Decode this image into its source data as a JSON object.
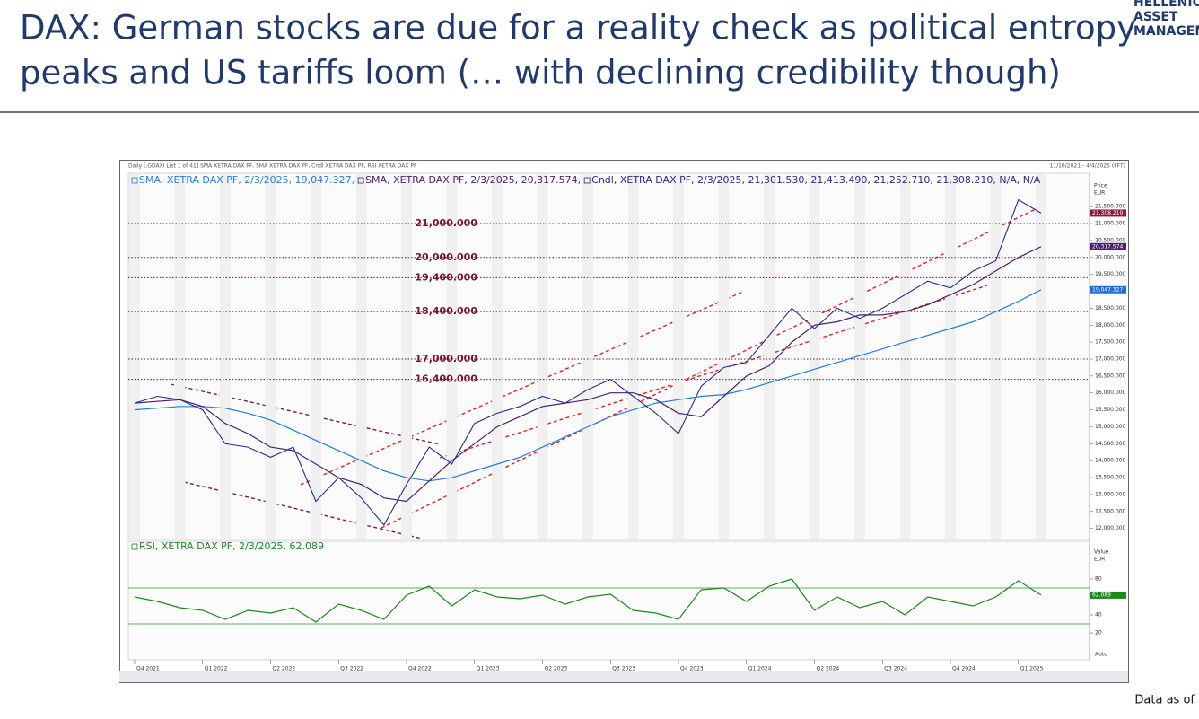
{
  "header": {
    "title": [
      "DAX: German stocks are due for a reality check as political entropy",
      "peaks and US tariffs loom (… with declining credibility though)"
    ],
    "logo": [
      "HELLENIC",
      "ASSET",
      "MANAGEMENT"
    ]
  },
  "footer": {
    "note": "Data as of"
  },
  "chart_data": [
    {
      "type": "line",
      "caption": "Daily [.GDAXI List 1 of 41] SMA XETRA DAX PF, SMA XETRA DAX PF, Cndl XETRA DAX PF, RSI XETRA DAX PF",
      "date_range": "11/10/2021 - 4/4/2025 (FFT)",
      "axis_title": [
        "Price",
        "EUR"
      ],
      "categories": [
        "Q4 2021",
        null,
        null,
        "Q1 2022",
        null,
        null,
        "Q2 2022",
        null,
        null,
        "Q3 2022",
        null,
        null,
        "Q4 2022",
        null,
        null,
        "Q1 2023",
        null,
        null,
        "Q2 2023",
        null,
        null,
        "Q3 2023",
        null,
        null,
        "Q4 2023",
        null,
        null,
        "Q1 2024",
        null,
        null,
        "Q2 2024",
        null,
        null,
        "Q3 2024",
        null,
        null,
        "Q4 2024",
        null,
        null,
        "Q1 2025",
        null
      ],
      "ylim": [
        11700,
        22300
      ],
      "yticks": [
        {
          "value": 12000,
          "label": "12,000.000"
        },
        {
          "value": 12500,
          "label": "12,500.000"
        },
        {
          "value": 13000,
          "label": "13,000.000"
        },
        {
          "value": 13500,
          "label": "13,500.000"
        },
        {
          "value": 14000,
          "label": "14,000.000"
        },
        {
          "value": 14500,
          "label": "14,500.000"
        },
        {
          "value": 15000,
          "label": "15,000.000"
        },
        {
          "value": 15500,
          "label": "15,500.000"
        },
        {
          "value": 16000,
          "label": "16,000.000"
        },
        {
          "value": 16500,
          "label": "16,500.000"
        },
        {
          "value": 17000,
          "label": "17,000.000"
        },
        {
          "value": 17500,
          "label": "17,500.000"
        },
        {
          "value": 18000,
          "label": "18,000.000"
        },
        {
          "value": 18500,
          "label": "18,500.000"
        },
        {
          "value": 19000,
          "label": "19,000.000"
        },
        {
          "value": 19500,
          "label": "19,500.000"
        },
        {
          "value": 20000,
          "label": "20,000.000"
        },
        {
          "value": 20500,
          "label": "20,500.000"
        },
        {
          "value": 21000,
          "label": "21,000.000"
        },
        {
          "value": 21500,
          "label": "21,500.000"
        }
      ],
      "levels": [
        {
          "value": 21000,
          "label": "21,000.000"
        },
        {
          "value": 20000,
          "label": "20,000.000"
        },
        {
          "value": 19400,
          "label": "19,400.000"
        },
        {
          "value": 18400,
          "label": "18,400.000"
        },
        {
          "value": 17000,
          "label": "17,000.000"
        },
        {
          "value": 16400,
          "label": "16,400.000"
        }
      ],
      "level_color": "#7b1030",
      "series": [
        {
          "name": "SMA, XETRA DAX PF, 2/3/2025, 19,047.327,",
          "color": "#1e7fe0",
          "last_label": "19,047.327",
          "values": [
            15500,
            15550,
            15600,
            15600,
            15550,
            15400,
            15200,
            14900,
            14600,
            14300,
            14000,
            13700,
            13500,
            13400,
            13500,
            13700,
            13900,
            14100,
            14400,
            14700,
            15000,
            15300,
            15500,
            15700,
            15800,
            15900,
            15950,
            16100,
            16300,
            16500,
            16700,
            16900,
            17100,
            17300,
            17500,
            17700,
            17900,
            18100,
            18400,
            18700,
            19047
          ]
        },
        {
          "name": "SMA, XETRA DAX PF, 2/3/2025, 20,317.574,",
          "color": "#4b1f6b",
          "last_label": "20,317.574",
          "values": [
            15700,
            15750,
            15800,
            15600,
            15100,
            14800,
            14400,
            14300,
            13900,
            13500,
            13300,
            12900,
            12800,
            13400,
            14000,
            14500,
            15000,
            15300,
            15600,
            15700,
            15800,
            16000,
            16000,
            15800,
            15400,
            15300,
            15900,
            16500,
            16800,
            17500,
            18000,
            18100,
            18300,
            18300,
            18400,
            18600,
            18900,
            19200,
            19600,
            20000,
            20318
          ]
        },
        {
          "name": "Cndl, XETRA DAX PF, 2/3/2025, 21,301.530, 21,413.490, 21,252.710, 21,308.210, N/A, N/A",
          "color": "#2a2a8a",
          "last_label": "21,308.210",
          "values": [
            15700,
            15900,
            15800,
            15500,
            14500,
            14400,
            14100,
            14400,
            12800,
            13500,
            12900,
            12100,
            13300,
            14400,
            13900,
            15100,
            15400,
            15600,
            15900,
            15700,
            16100,
            16400,
            15900,
            15400,
            14800,
            16200,
            16750,
            16900,
            17700,
            18500,
            17900,
            18500,
            18200,
            18500,
            18900,
            19300,
            19100,
            19600,
            19900,
            21700,
            21308
          ]
        }
      ],
      "label_colors": [
        "#1e6fd9",
        "#4b1f6b",
        "#8b1a3a"
      ]
    },
    {
      "type": "line",
      "axis_title": [
        "Value",
        "EUR"
      ],
      "ylim": [
        0,
        100
      ],
      "yticks": [
        20,
        40,
        60,
        80
      ],
      "levels": [
        30,
        70
      ],
      "level_color": "#2e9a2e",
      "auto": "Auto",
      "series": [
        {
          "name": "RSI, XETRA DAX PF, 2/3/2025, 62.089",
          "color": "#1a8a1a",
          "last_label": "62.089",
          "values": [
            60,
            55,
            48,
            45,
            35,
            45,
            42,
            48,
            32,
            52,
            45,
            35,
            62,
            72,
            50,
            68,
            60,
            58,
            62,
            52,
            60,
            63,
            45,
            42,
            35,
            68,
            70,
            55,
            72,
            80,
            45,
            60,
            48,
            55,
            40,
            60,
            55,
            50,
            60,
            78,
            62.089
          ]
        }
      ],
      "label_colors": [
        "#1a8a1a"
      ]
    }
  ]
}
